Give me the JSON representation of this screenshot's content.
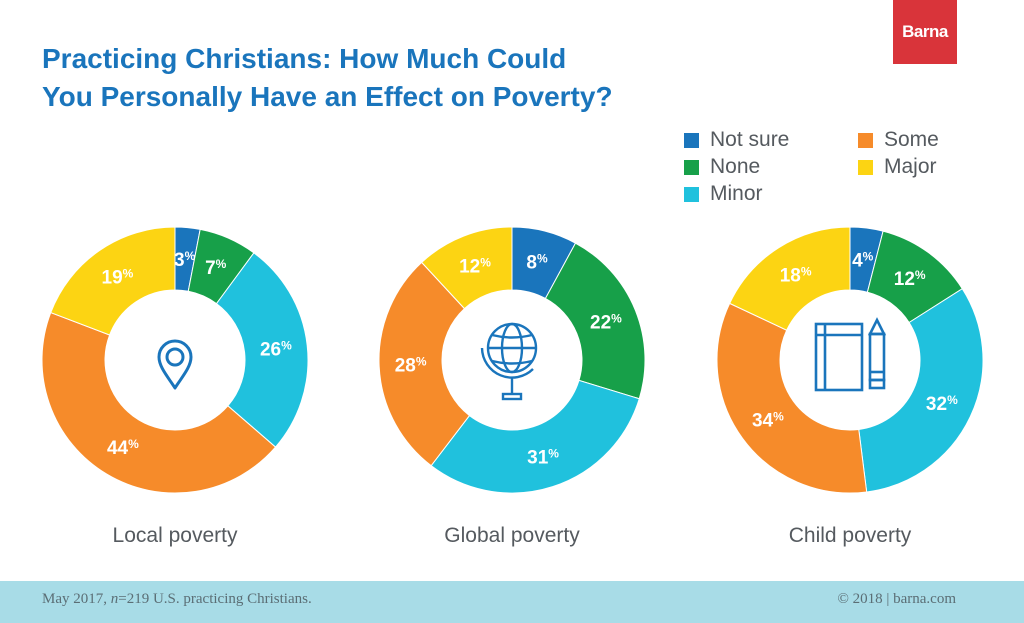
{
  "header": {
    "title_line1": "Practicing Christians: How Much Could",
    "title_line2": "You Personally Have an Effect on Poverty?",
    "logo_text": "Barna"
  },
  "footer": {
    "date": "May 2017,",
    "n_label": "n",
    "sample": "=219 U.S. practicing Christians.",
    "credit": "© 2018 | barna.com"
  },
  "colors": {
    "Not sure": "#1a75bc",
    "None": "#17a049",
    "Minor": "#20c1dd",
    "Some": "#f68b2a",
    "Major": "#fcd413",
    "title": "#1a75bc",
    "icon": "#1a75bc"
  },
  "legend": [
    {
      "label": "Not sure",
      "color": "#1a75bc"
    },
    {
      "label": "None",
      "color": "#17a049"
    },
    {
      "label": "Minor",
      "color": "#20c1dd"
    },
    {
      "label": "Some",
      "color": "#f68b2a"
    },
    {
      "label": "Major",
      "color": "#fcd413"
    }
  ],
  "chart_data": [
    {
      "type": "pie",
      "title": "Local poverty",
      "icon": "location-pin-icon",
      "categories": [
        "Not sure",
        "None",
        "Minor",
        "Some",
        "Major"
      ],
      "values": [
        3,
        7,
        26,
        44,
        19
      ],
      "value_suffix": "%"
    },
    {
      "type": "pie",
      "title": "Global poverty",
      "icon": "globe-icon",
      "categories": [
        "Not sure",
        "None",
        "Minor",
        "Some",
        "Major"
      ],
      "values": [
        8,
        22,
        31,
        28,
        12
      ],
      "value_suffix": "%"
    },
    {
      "type": "pie",
      "title": "Child poverty",
      "icon": "notebook-pencil-icon",
      "categories": [
        "Not sure",
        "None",
        "Minor",
        "Some",
        "Major"
      ],
      "values": [
        4,
        12,
        32,
        34,
        18
      ],
      "value_suffix": "%"
    }
  ]
}
